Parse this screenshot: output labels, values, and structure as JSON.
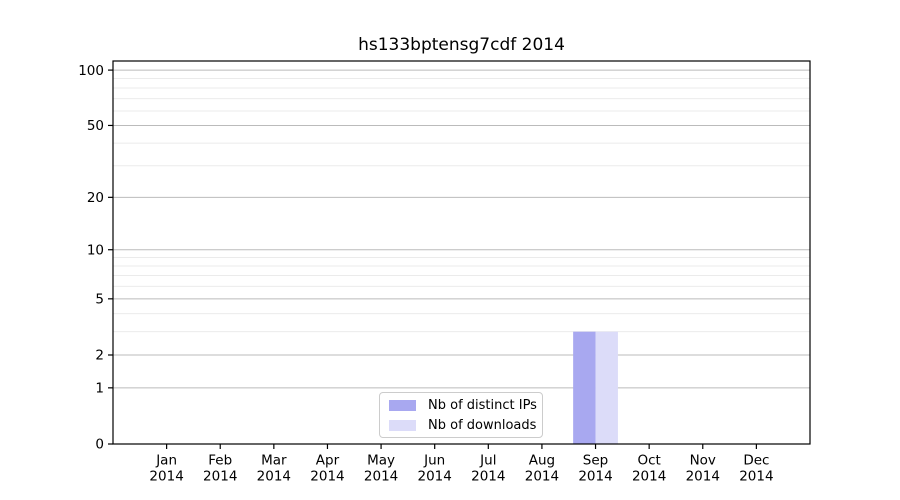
{
  "chart_data": {
    "type": "bar",
    "title": "hs133bptensg7cdf 2014",
    "categories": [
      "Jan",
      "Feb",
      "Mar",
      "Apr",
      "May",
      "Jun",
      "Jul",
      "Aug",
      "Sep",
      "Oct",
      "Nov",
      "Dec"
    ],
    "category_year": "2014",
    "series": [
      {
        "name": "Nb of distinct IPs",
        "color": "#a8a8f0",
        "values": [
          0,
          0,
          0,
          0,
          0,
          0,
          0,
          0,
          3,
          0,
          0,
          0
        ]
      },
      {
        "name": "Nb of downloads",
        "color": "#dcdcf9",
        "values": [
          0,
          0,
          0,
          0,
          0,
          0,
          0,
          0,
          3,
          0,
          0,
          0
        ]
      }
    ],
    "xlabel": "",
    "ylabel": "",
    "yscale": "log1p",
    "yticks": [
      0,
      1,
      2,
      5,
      10,
      20,
      50,
      100
    ],
    "minor_yticks": [
      3,
      4,
      6,
      7,
      8,
      9,
      30,
      40,
      60,
      70,
      80,
      90
    ],
    "ylim": [
      0,
      112
    ],
    "grid": true,
    "legend_position": "lower center",
    "colors": {
      "axis": "#000000",
      "text": "#000000",
      "major_grid": "#bbbbbb",
      "minor_grid": "#ebebeb",
      "background": "#ffffff",
      "legend_border": "#cccccc"
    }
  }
}
